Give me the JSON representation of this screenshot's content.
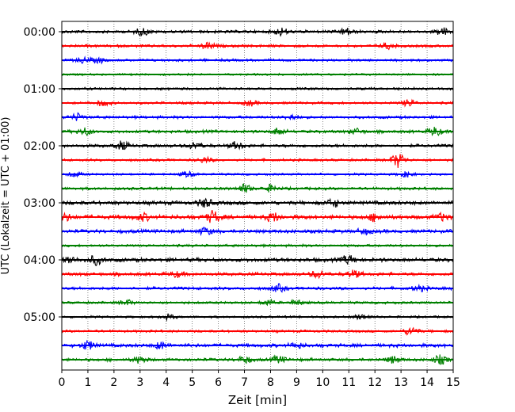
{
  "chart_data": {
    "type": "line",
    "title": "",
    "xlabel": "Zeit  [min]",
    "ylabel": "UTC (Lokalzeit = UTC + 01:00)",
    "xlim": [
      0,
      15
    ],
    "x_ticks": [
      "0",
      "1",
      "2",
      "3",
      "4",
      "5",
      "6",
      "7",
      "8",
      "9",
      "10",
      "11",
      "12",
      "13",
      "14",
      "15"
    ],
    "y_ticks": [
      "00:00",
      "01:00",
      "02:00",
      "03:00",
      "04:00",
      "05:00"
    ],
    "minutes_per_trace": 15,
    "grid": "vertical dotted at each minute",
    "legend": "none",
    "colors": [
      "#000000",
      "#ff0000",
      "#0000ff",
      "#008000"
    ],
    "series": [
      {
        "start": "00:00",
        "color": "#000000",
        "amplitude": 2.2,
        "bursts": [
          [
            3.1,
            4
          ],
          [
            8.4,
            4
          ],
          [
            10.9,
            4
          ],
          [
            14.6,
            4
          ]
        ]
      },
      {
        "start": "00:15",
        "color": "#ff0000",
        "amplitude": 2.0,
        "bursts": [
          [
            5.6,
            4
          ],
          [
            12.5,
            3
          ]
        ]
      },
      {
        "start": "00:30",
        "color": "#0000ff",
        "amplitude": 1.8,
        "bursts": [
          [
            0.8,
            3
          ],
          [
            1.4,
            3
          ]
        ]
      },
      {
        "start": "00:45",
        "color": "#008000",
        "amplitude": 1.5,
        "bursts": []
      },
      {
        "start": "01:00",
        "color": "#000000",
        "amplitude": 1.8,
        "bursts": []
      },
      {
        "start": "01:15",
        "color": "#ff0000",
        "amplitude": 1.8,
        "bursts": [
          [
            1.6,
            3
          ],
          [
            7.2,
            3
          ],
          [
            13.3,
            4
          ]
        ]
      },
      {
        "start": "01:30",
        "color": "#0000ff",
        "amplitude": 2.0,
        "bursts": [
          [
            0.6,
            4
          ],
          [
            8.8,
            3
          ]
        ]
      },
      {
        "start": "01:45",
        "color": "#008000",
        "amplitude": 2.2,
        "bursts": [
          [
            0.9,
            4
          ],
          [
            8.3,
            4
          ],
          [
            11.3,
            3
          ],
          [
            14.3,
            5
          ]
        ]
      },
      {
        "start": "02:00",
        "color": "#000000",
        "amplitude": 2.3,
        "bursts": [
          [
            2.3,
            5
          ],
          [
            5.1,
            4
          ],
          [
            6.7,
            4
          ]
        ]
      },
      {
        "start": "02:15",
        "color": "#ff0000",
        "amplitude": 1.8,
        "bursts": [
          [
            5.5,
            3
          ],
          [
            12.9,
            9
          ]
        ]
      },
      {
        "start": "02:30",
        "color": "#0000ff",
        "amplitude": 1.6,
        "bursts": [
          [
            0.5,
            3
          ],
          [
            4.8,
            3
          ],
          [
            13.2,
            3
          ]
        ]
      },
      {
        "start": "02:45",
        "color": "#008000",
        "amplitude": 2.0,
        "bursts": [
          [
            7.0,
            5
          ],
          [
            8.0,
            4
          ]
        ]
      },
      {
        "start": "03:00",
        "color": "#000000",
        "amplitude": 2.8,
        "bursts": [
          [
            5.5,
            5
          ],
          [
            10.4,
            4
          ]
        ]
      },
      {
        "start": "03:15",
        "color": "#ff0000",
        "amplitude": 3.0,
        "bursts": [
          [
            0.1,
            4
          ],
          [
            3.1,
            4
          ],
          [
            5.8,
            7
          ],
          [
            8.1,
            5
          ],
          [
            12.0,
            4
          ],
          [
            14.6,
            4
          ]
        ]
      },
      {
        "start": "03:30",
        "color": "#0000ff",
        "amplitude": 2.6,
        "bursts": [
          [
            5.5,
            4
          ],
          [
            11.6,
            3
          ]
        ]
      },
      {
        "start": "03:45",
        "color": "#008000",
        "amplitude": 1.8,
        "bursts": []
      },
      {
        "start": "04:00",
        "color": "#000000",
        "amplitude": 2.8,
        "bursts": [
          [
            0.3,
            4
          ],
          [
            1.3,
            5
          ],
          [
            11.0,
            5
          ]
        ]
      },
      {
        "start": "04:15",
        "color": "#ff0000",
        "amplitude": 2.4,
        "bursts": [
          [
            4.4,
            3
          ],
          [
            9.8,
            4
          ],
          [
            11.2,
            4
          ]
        ]
      },
      {
        "start": "04:30",
        "color": "#0000ff",
        "amplitude": 2.2,
        "bursts": [
          [
            8.3,
            4
          ],
          [
            13.7,
            3
          ]
        ]
      },
      {
        "start": "04:45",
        "color": "#008000",
        "amplitude": 1.8,
        "bursts": [
          [
            2.5,
            3
          ],
          [
            7.9,
            3
          ],
          [
            9.0,
            3
          ]
        ]
      },
      {
        "start": "05:00",
        "color": "#000000",
        "amplitude": 1.6,
        "bursts": [
          [
            4.1,
            3
          ],
          [
            11.5,
            3
          ]
        ]
      },
      {
        "start": "05:15",
        "color": "#ff0000",
        "amplitude": 1.8,
        "bursts": [
          [
            13.4,
            5
          ]
        ]
      },
      {
        "start": "05:30",
        "color": "#0000ff",
        "amplitude": 2.6,
        "bursts": [
          [
            1.0,
            5
          ],
          [
            3.8,
            4
          ],
          [
            9.0,
            3
          ]
        ]
      },
      {
        "start": "05:45",
        "color": "#008000",
        "amplitude": 2.2,
        "bursts": [
          [
            3.0,
            4
          ],
          [
            7.0,
            4
          ],
          [
            8.3,
            4
          ],
          [
            12.7,
            4
          ],
          [
            14.5,
            5
          ]
        ]
      }
    ]
  }
}
